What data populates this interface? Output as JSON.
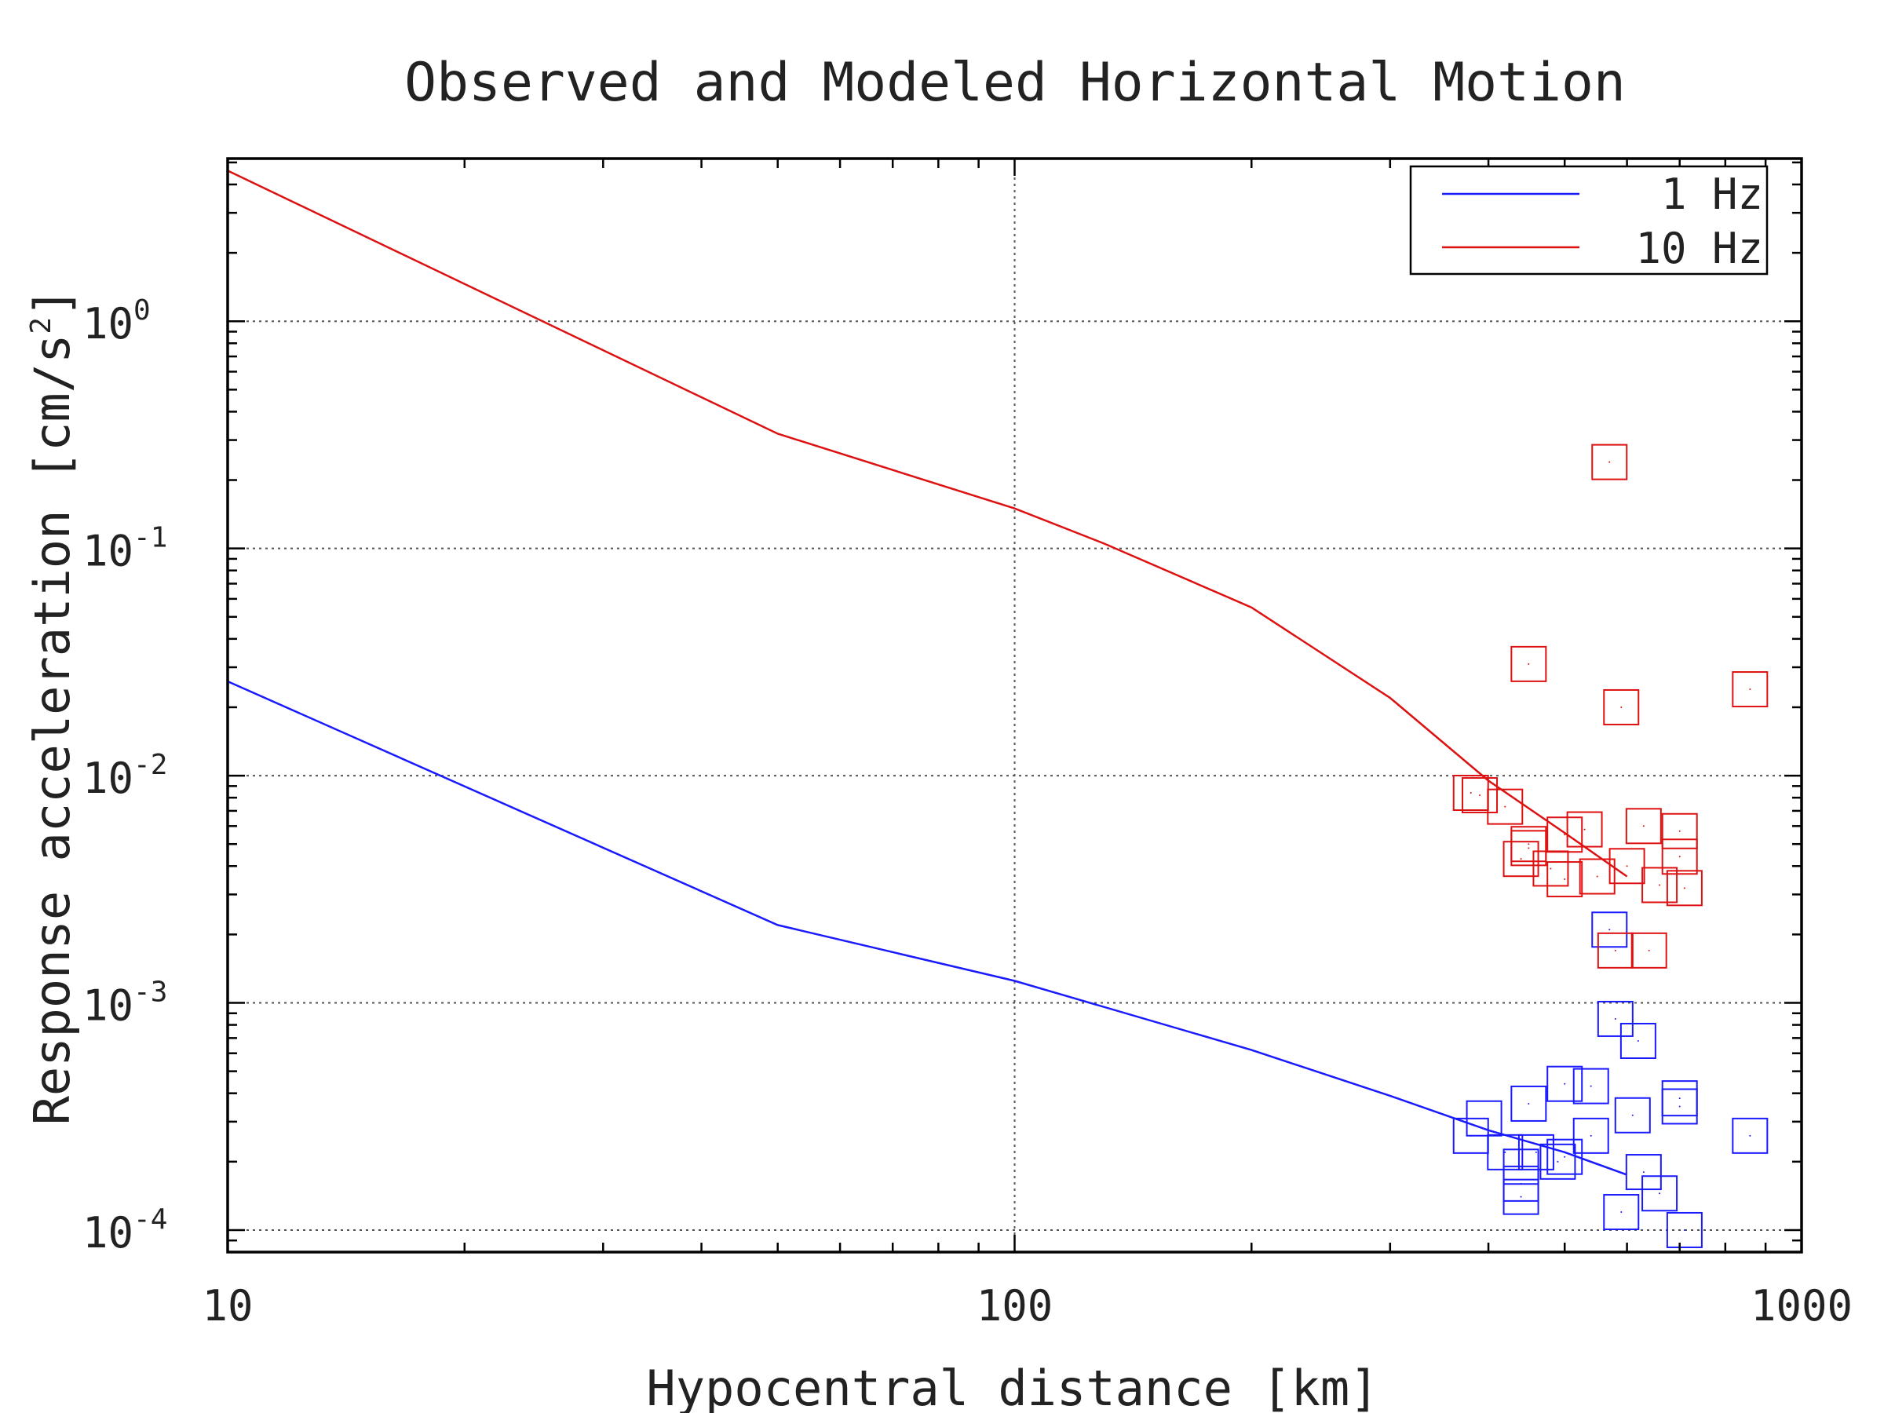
{
  "chart_data": {
    "type": "scatter",
    "title": "Observed and Modeled Horizontal Motion",
    "xlabel": "Hypocentral distance [km]",
    "ylabel": "Response acceleration [cm/s",
    "ylabel_sup": "2",
    "ylabel_end": "]",
    "xscale": "log",
    "yscale": "log",
    "xlim": [
      10,
      1000
    ],
    "ylim": [
      8e-05,
      5.2
    ],
    "grid": true,
    "legend_position": "top-right",
    "x_ticks": [
      {
        "value": 10,
        "label": "10"
      },
      {
        "value": 100,
        "label": "100"
      },
      {
        "value": 1000,
        "label": "1000"
      }
    ],
    "y_ticks": [
      {
        "value": 1,
        "base": "10",
        "exp": "0"
      },
      {
        "value": 0.1,
        "base": "10",
        "exp": "-1"
      },
      {
        "value": 0.01,
        "base": "10",
        "exp": "-2"
      },
      {
        "value": 0.001,
        "base": "10",
        "exp": "-3"
      },
      {
        "value": 0.0001,
        "base": "10",
        "exp": "-4"
      }
    ],
    "series": [
      {
        "name": "1 Hz",
        "color": "#1a1aff",
        "model_line": [
          [
            10,
            0.026
          ],
          [
            50,
            0.0022
          ],
          [
            100,
            0.00125
          ],
          [
            200,
            0.00062
          ],
          [
            300,
            0.00039
          ],
          [
            400,
            0.000275
          ],
          [
            500,
            0.00022
          ],
          [
            600,
            0.000175
          ]
        ],
        "observed": [
          [
            380,
            0.00026
          ],
          [
            395,
            0.00031
          ],
          [
            420,
            0.00022
          ],
          [
            440,
            0.00019
          ],
          [
            440,
            0.00014
          ],
          [
            440,
            0.00016
          ],
          [
            450,
            0.00036
          ],
          [
            460,
            0.00022
          ],
          [
            490,
            0.0002
          ],
          [
            500,
            0.00021
          ],
          [
            500,
            0.00044
          ],
          [
            540,
            0.00043
          ],
          [
            540,
            0.00026
          ],
          [
            570,
            0.0021
          ],
          [
            580,
            0.00085
          ],
          [
            590,
            0.00012
          ],
          [
            610,
            0.00032
          ],
          [
            620,
            0.00068
          ],
          [
            630,
            0.00018
          ],
          [
            660,
            0.000145
          ],
          [
            700,
            0.00035
          ],
          [
            700,
            0.00038
          ],
          [
            710,
            0.0001
          ],
          [
            860,
            0.00026
          ]
        ]
      },
      {
        "name": "10 Hz",
        "color": "#dd1111",
        "model_line": [
          [
            10,
            4.6
          ],
          [
            50,
            0.32
          ],
          [
            100,
            0.15
          ],
          [
            130,
            0.105
          ],
          [
            200,
            0.055
          ],
          [
            300,
            0.022
          ],
          [
            400,
            0.0095
          ],
          [
            500,
            0.0056
          ],
          [
            600,
            0.0036
          ]
        ],
        "observed": [
          [
            380,
            0.0084
          ],
          [
            390,
            0.0082
          ],
          [
            420,
            0.0073
          ],
          [
            440,
            0.0043
          ],
          [
            450,
            0.0048
          ],
          [
            450,
            0.005
          ],
          [
            450,
            0.031
          ],
          [
            480,
            0.0039
          ],
          [
            500,
            0.0035
          ],
          [
            500,
            0.0055
          ],
          [
            530,
            0.0058
          ],
          [
            550,
            0.0036
          ],
          [
            570,
            0.24
          ],
          [
            580,
            0.0017
          ],
          [
            590,
            0.02
          ],
          [
            600,
            0.004
          ],
          [
            630,
            0.006
          ],
          [
            640,
            0.0017
          ],
          [
            660,
            0.0033
          ],
          [
            700,
            0.0044
          ],
          [
            700,
            0.0057
          ],
          [
            710,
            0.0032
          ],
          [
            860,
            0.024
          ]
        ]
      }
    ]
  }
}
